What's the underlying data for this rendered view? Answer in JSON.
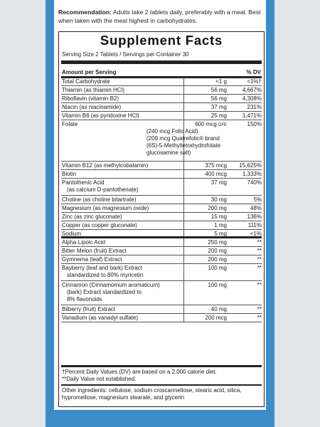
{
  "recommendation": {
    "label": "Recommendation:",
    "text": " Adults take 2 tablets daily, preferably with a meal. Best when taken with the meal highest in carbohydrates."
  },
  "facts": {
    "title": "Supplement Facts",
    "serving": "Serving Size 2 Tablets / Servings per Container 30",
    "header_left": "Amount per Serving",
    "header_right": "% DV",
    "rows": [
      {
        "name": "Total Carbohydrate",
        "amount": "<1 g",
        "dv": "<1%†"
      },
      {
        "name": "Thiamin (as thiamin HCl)",
        "amount": "56 mg",
        "dv": "4,667%"
      },
      {
        "name": "Riboflavin (vitamin B2)",
        "amount": "56 mg",
        "dv": "4,308%"
      },
      {
        "name": "Niacin (as niacinamide)",
        "amount": "37 mg",
        "dv": "231%"
      },
      {
        "name": "Vitamin B6 (as pyridoxine HCl)",
        "amount": "25 mg",
        "dv": "1,471%"
      },
      {
        "name": "Folate",
        "amount": "600 mcg",
        "amount_unit": "DFE",
        "dv": "150%",
        "sub": [
          "(240 mcg Folic Acid)",
          "(209 mcg Quatrefolic® brand",
          "(6S)-5-Methyltetrahydrofolate",
          "glucosamine salt)"
        ]
      },
      {
        "name": "Vitamin B12 (as methylcobalamin)",
        "amount": "375 mcg",
        "dv": "15,625%"
      },
      {
        "name": "Biotin",
        "amount": "400 mcg",
        "dv": "1,333%"
      },
      {
        "name": "Pantothenic Acid",
        "name2": "(as calcium D-pantothenate)",
        "amount": "37 mg",
        "dv": "740%"
      },
      {
        "name": "Choline (as choline bitartrate)",
        "amount": "30 mg",
        "dv": "5%"
      },
      {
        "name": "Magnesium (as magnesium oxide)",
        "amount": "200 mg",
        "dv": "48%"
      },
      {
        "name": "Zinc (as zinc gluconate)",
        "amount": "15 mg",
        "dv": "136%"
      },
      {
        "name": "Copper (as copper gluconate)",
        "amount": "1 mg",
        "dv": "111%"
      },
      {
        "name": "Sodium",
        "amount": "5 mg",
        "dv": "<1%"
      },
      {
        "name": "Alpha Lipoic Acid",
        "amount": "250 mg",
        "dv": "**"
      },
      {
        "name": "Bitter Melon (fruit) Extract",
        "amount": "200 mg",
        "dv": "**"
      },
      {
        "name": "Gymnema (leaf) Extract",
        "amount": "200 mg",
        "dv": "**"
      },
      {
        "name": "Bayberry (leaf and bark) Extract",
        "name2": "standardized to 80% myricetin",
        "amount": "100 mg",
        "dv": "**"
      },
      {
        "name": "Cinnamon (Cinnamomum aromaticum)",
        "name2": "(bark) Extract standardized to",
        "name3": "8% flavonoids",
        "amount": "100 mg",
        "dv": "**"
      },
      {
        "name": "Bilberry (fruit) Extract",
        "amount": "40 mg",
        "dv": "**"
      },
      {
        "name": "Vanadium (as vanadyl sulfate)",
        "amount": "200 mcg",
        "dv": "**"
      }
    ],
    "footnote1": "†Percent Daily Values (DV) are based on a 2,000 calorie diet.",
    "footnote2": "**Daily Value not established.",
    "other_ingredients": "Other ingredients: cellulose, sodium croscarmellose, stearic acid, silica, hypromellose, magnesium stearate, and glycerin"
  }
}
